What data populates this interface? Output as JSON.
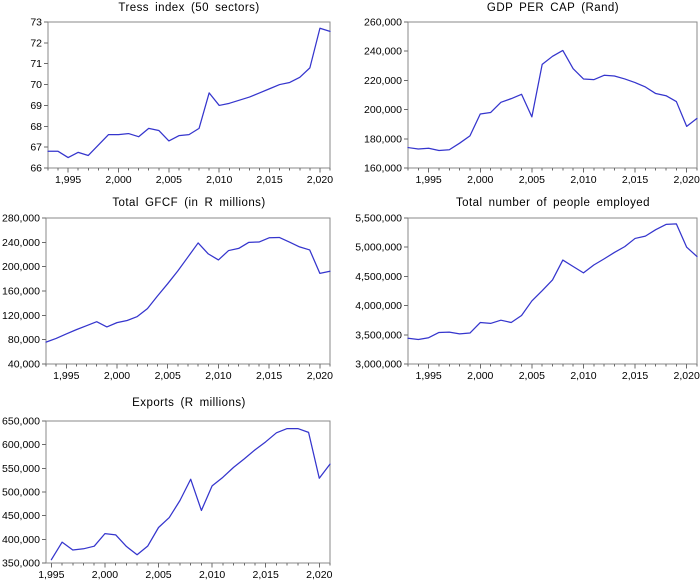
{
  "colors": {
    "line": "#3535cd",
    "frame": "#8a8a8a",
    "tick": "#6b6b6b",
    "text": "#000000",
    "background": "#ffffff"
  },
  "chart_data": [
    {
      "type": "line",
      "title": "Tress index (50 sectors)",
      "x": [
        1993,
        1994,
        1995,
        1996,
        1997,
        1998,
        1999,
        2000,
        2001,
        2002,
        2003,
        2004,
        2005,
        2006,
        2007,
        2008,
        2009,
        2010,
        2011,
        2012,
        2013,
        2014,
        2015,
        2016,
        2017,
        2018,
        2019,
        2020,
        2021
      ],
      "values": [
        66.8,
        66.8,
        66.5,
        66.75,
        66.6,
        67.1,
        67.6,
        67.6,
        67.65,
        67.5,
        67.9,
        67.8,
        67.3,
        67.55,
        67.6,
        67.9,
        69.6,
        69.0,
        69.1,
        69.25,
        69.4,
        69.6,
        69.8,
        70.0,
        70.1,
        70.35,
        70.8,
        72.7,
        72.55
      ],
      "xlim": [
        1993,
        2021
      ],
      "ylim": [
        66,
        73
      ],
      "yticks": [
        66,
        67,
        68,
        69,
        70,
        71,
        72,
        73
      ],
      "xticks": [
        1995,
        2000,
        2005,
        2010,
        2015,
        2020
      ],
      "grid": false,
      "legend": "none"
    },
    {
      "type": "line",
      "title": "GDP PER CAP (Rand)",
      "x": [
        1993,
        1994,
        1995,
        1996,
        1997,
        1998,
        1999,
        2000,
        2001,
        2002,
        2003,
        2004,
        2005,
        2006,
        2007,
        2008,
        2009,
        2010,
        2011,
        2012,
        2013,
        2014,
        2015,
        2016,
        2017,
        2018,
        2019,
        2020,
        2021
      ],
      "values": [
        174000,
        173000,
        173500,
        172000,
        172500,
        177000,
        182000,
        197000,
        198000,
        205000,
        207500,
        210500,
        195000,
        231000,
        236500,
        240500,
        228000,
        221000,
        220500,
        223500,
        223000,
        221000,
        218500,
        215500,
        211000,
        209500,
        205500,
        188500,
        194000
      ],
      "xlim": [
        1993,
        2021
      ],
      "ylim": [
        160000,
        260000
      ],
      "yticks": [
        160000,
        180000,
        200000,
        220000,
        240000,
        260000
      ],
      "xticks": [
        1995,
        2000,
        2005,
        2010,
        2015,
        2020
      ],
      "grid": false,
      "legend": "none"
    },
    {
      "type": "line",
      "title": "Total GFCF (in R millions)",
      "x": [
        1993,
        1994,
        1995,
        1996,
        1997,
        1998,
        1999,
        2000,
        2001,
        2002,
        2003,
        2004,
        2005,
        2006,
        2007,
        2008,
        2009,
        2010,
        2011,
        2012,
        2013,
        2014,
        2015,
        2016,
        2017,
        2018,
        2019,
        2020,
        2021
      ],
      "values": [
        76000,
        82000,
        89500,
        96500,
        103000,
        109500,
        101000,
        108000,
        111500,
        118000,
        131000,
        152000,
        172000,
        193000,
        216000,
        239000,
        221000,
        211000,
        226500,
        230000,
        240000,
        240500,
        247500,
        248000,
        240500,
        232500,
        227500,
        189000,
        192500
      ],
      "xlim": [
        1993,
        2021
      ],
      "ylim": [
        40000,
        280000
      ],
      "yticks": [
        40000,
        80000,
        120000,
        160000,
        200000,
        240000,
        280000
      ],
      "xticks": [
        1995,
        2000,
        2005,
        2010,
        2015,
        2020
      ],
      "grid": false,
      "legend": "none"
    },
    {
      "type": "line",
      "title": "Total number of people employed",
      "x": [
        1993,
        1994,
        1995,
        1996,
        1997,
        1998,
        1999,
        2000,
        2001,
        2002,
        2003,
        2004,
        2005,
        2006,
        2007,
        2008,
        2009,
        2010,
        2011,
        2012,
        2013,
        2014,
        2015,
        2016,
        2017,
        2018,
        2019,
        2020,
        2021
      ],
      "values": [
        3440000,
        3420000,
        3450000,
        3540000,
        3545000,
        3515000,
        3530000,
        3710000,
        3695000,
        3750000,
        3710000,
        3830000,
        4080000,
        4255000,
        4440000,
        4780000,
        4670000,
        4560000,
        4695000,
        4800000,
        4910000,
        5010000,
        5150000,
        5190000,
        5300000,
        5390000,
        5400000,
        5000000,
        4840000
      ],
      "xlim": [
        1993,
        2021
      ],
      "ylim": [
        3000000,
        5500000
      ],
      "yticks": [
        3000000,
        3500000,
        4000000,
        4500000,
        5000000,
        5500000
      ],
      "xticks": [
        1995,
        2000,
        2005,
        2010,
        2015,
        2020
      ],
      "grid": false,
      "legend": "none"
    },
    {
      "type": "line",
      "title": "Exports (R millions)",
      "x": [
        1995,
        1996,
        1997,
        1998,
        1999,
        2000,
        2001,
        2002,
        2003,
        2004,
        2005,
        2006,
        2007,
        2008,
        2009,
        2010,
        2011,
        2012,
        2013,
        2014,
        2015,
        2016,
        2017,
        2018,
        2019,
        2020,
        2021
      ],
      "values": [
        357000,
        394000,
        377500,
        380000,
        385500,
        412000,
        409500,
        385000,
        367500,
        386000,
        425000,
        446000,
        482000,
        527000,
        461000,
        513000,
        531000,
        552000,
        570000,
        589000,
        606000,
        625000,
        634000,
        634000,
        626000,
        529000,
        559000
      ],
      "xlim": [
        1994.5,
        2021
      ],
      "ylim": [
        350000,
        650000
      ],
      "yticks": [
        350000,
        400000,
        450000,
        500000,
        550000,
        600000,
        650000
      ],
      "xticks": [
        1995,
        2000,
        2005,
        2010,
        2015,
        2020
      ],
      "grid": false,
      "legend": "none"
    }
  ]
}
